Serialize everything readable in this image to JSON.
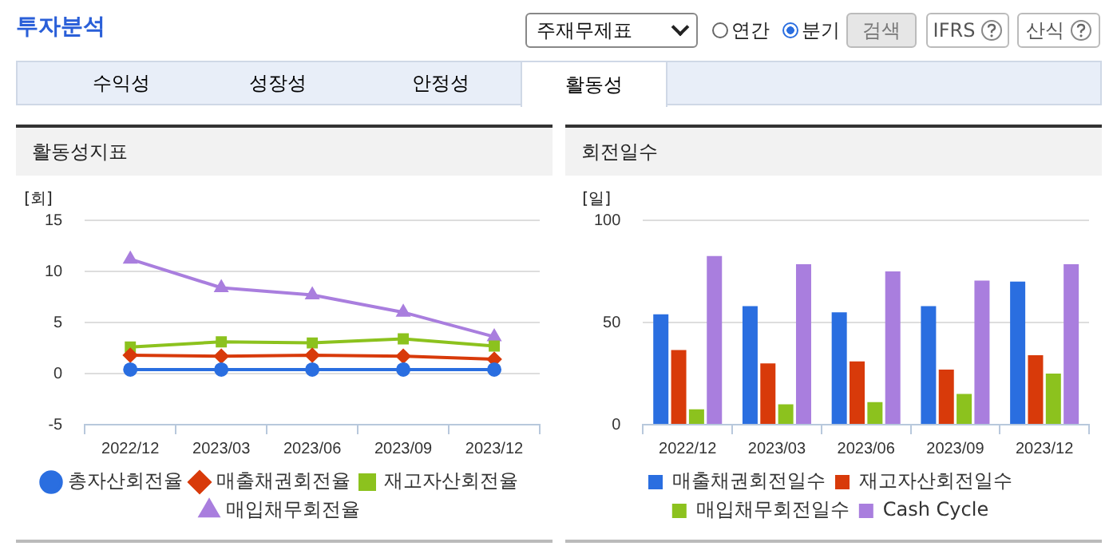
{
  "chart_data": [
    {
      "type": "other",
      "title": "투자분석",
      "annotations": [
        "주재무제표",
        "연간",
        "분기",
        "검색",
        "IFRS",
        "산식",
        "수익성",
        "성장성",
        "안정성",
        "활동성"
      ]
    },
    {
      "type": "line",
      "title": "활동성지표",
      "ylabel": "[회]",
      "categories": [
        "2022/12",
        "2023/03",
        "2023/06",
        "2023/09",
        "2023/12"
      ],
      "ylim": [
        -5,
        15
      ],
      "yticks": [
        -5,
        0,
        5,
        10,
        15
      ],
      "grid": "y",
      "legend": "bottom",
      "series": [
        {
          "name": "총자산회전율",
          "color": "#2a6ee0",
          "marker": "circle",
          "values": [
            0.4,
            0.4,
            0.4,
            0.4,
            0.4
          ]
        },
        {
          "name": "매출채권회전율",
          "color": "#d83a0a",
          "marker": "diamond",
          "values": [
            1.8,
            1.7,
            1.8,
            1.7,
            1.4
          ]
        },
        {
          "name": "재고자산회전율",
          "color": "#8cc21e",
          "marker": "square",
          "values": [
            2.6,
            3.1,
            3.0,
            3.4,
            2.7
          ]
        },
        {
          "name": "매입채무회전율",
          "color": "#a97ede",
          "marker": "triangle",
          "values": [
            11.2,
            8.4,
            7.7,
            6.0,
            3.6
          ]
        }
      ]
    },
    {
      "type": "bar",
      "title": "회전일수",
      "ylabel": "[일]",
      "categories": [
        "2022/12",
        "2023/03",
        "2023/06",
        "2023/09",
        "2023/12"
      ],
      "ylim": [
        0,
        100
      ],
      "yticks": [
        0,
        50,
        100
      ],
      "grid": "y",
      "legend": "bottom",
      "series": [
        {
          "name": "매출채권회전일수",
          "color": "#2a6ee0",
          "values": [
            54,
            58,
            55,
            58,
            70
          ]
        },
        {
          "name": "재고자산회전일수",
          "color": "#d83a0a",
          "values": [
            36.5,
            30,
            31,
            27,
            34
          ]
        },
        {
          "name": "매입채무회전일수",
          "color": "#8cc21e",
          "values": [
            7.5,
            10,
            11,
            15,
            25
          ]
        },
        {
          "name": "Cash Cycle",
          "color": "#a97ede",
          "values": [
            82.5,
            78.5,
            75,
            70.5,
            78.5
          ]
        }
      ]
    }
  ]
}
